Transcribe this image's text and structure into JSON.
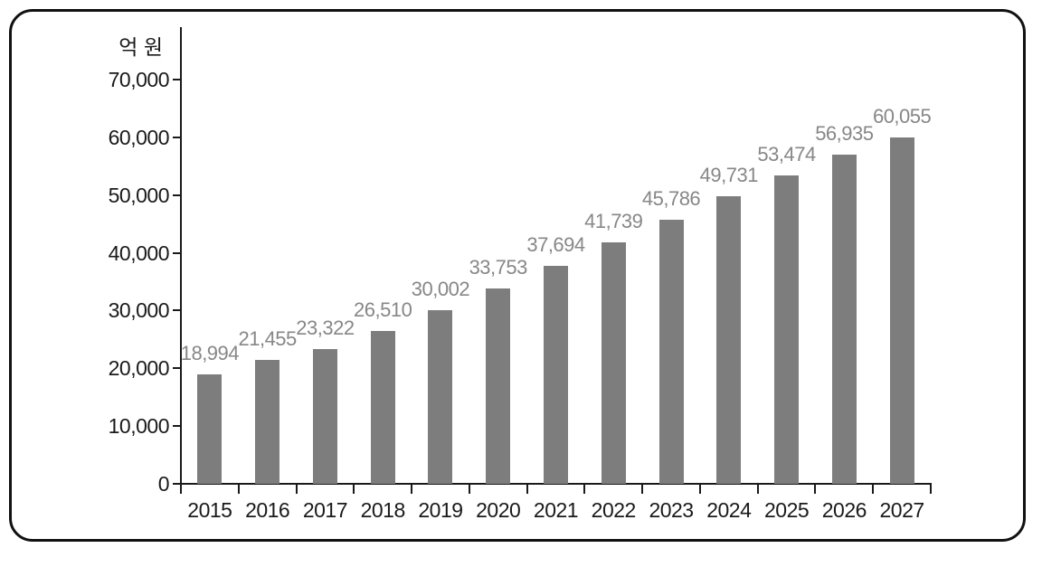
{
  "chart_data": {
    "type": "bar",
    "unit_label": "억 원",
    "ylabel": "억 원",
    "xlabel": "",
    "categories": [
      "2015",
      "2016",
      "2017",
      "2018",
      "2019",
      "2020",
      "2021",
      "2022",
      "2023",
      "2024",
      "2025",
      "2026",
      "2027"
    ],
    "values": [
      18994,
      21455,
      23322,
      26510,
      30002,
      33753,
      37694,
      41739,
      45786,
      49731,
      53474,
      56935,
      60055
    ],
    "value_labels": [
      "18,994",
      "21,455",
      "23,322",
      "26,510",
      "30,002",
      "33,753",
      "37,694",
      "41,739",
      "45,786",
      "49,731",
      "53,474",
      "56,935",
      "60,055"
    ],
    "ylim": [
      0,
      70000
    ],
    "ytick_step": 10000,
    "ytick_labels": [
      "0",
      "10,000",
      "20,000",
      "30,000",
      "40,000",
      "50,000",
      "60,000",
      "70,000"
    ],
    "grid": false,
    "legend": "none",
    "bar_color": "#7d7d7d",
    "value_label_color": "#878787",
    "axis_color": "#1a1a1a",
    "panel_border_color": "#111111",
    "background_color": "#ffffff"
  }
}
